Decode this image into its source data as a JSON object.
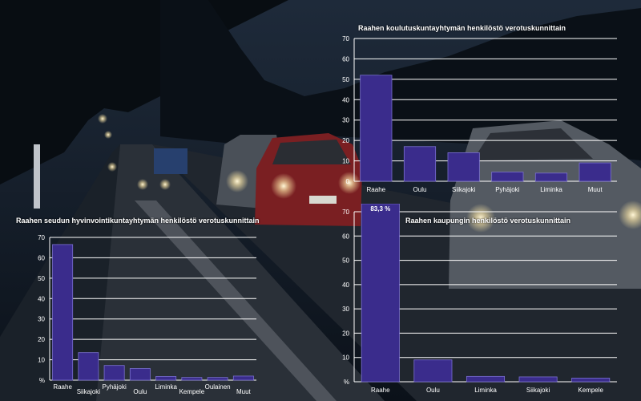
{
  "colors": {
    "bar": "#3a2c8c",
    "bar_stroke": "#7a70d0",
    "grid": "#ffffff",
    "text": "#ffffff"
  },
  "chart_data": [
    {
      "type": "bar",
      "title": "Raahen koulutuskuntayhtymän henkilöstö verotuskunnittain",
      "categories": [
        "Raahe",
        "Oulu",
        "Siikajoki",
        "Pyhäjoki",
        "Liminka",
        "Muut"
      ],
      "values": [
        52,
        17,
        14,
        4.5,
        4,
        9
      ],
      "yticks": [
        "0",
        "10",
        "20",
        "30",
        "40",
        "50",
        "60",
        "70"
      ],
      "ylim": [
        0,
        70
      ],
      "grid": true
    },
    {
      "type": "bar",
      "title": "Raahen seudun hyvinvointikuntayhtymän henkilöstö verotuskunnittain",
      "categories": [
        "Raahe",
        "Siikajoki",
        "Pyhäjoki",
        "Oulu",
        "Liminka",
        "Kempele",
        "Oulainen",
        "Muut"
      ],
      "values": [
        66.5,
        13.5,
        7.2,
        5.7,
        1.8,
        1.3,
        1.3,
        2
      ],
      "yticks": [
        "%",
        "10",
        "20",
        "30",
        "40",
        "50",
        "60",
        "70"
      ],
      "ylim": [
        0,
        70
      ],
      "grid": true
    },
    {
      "type": "bar",
      "title": "Raahen kaupungin henkilöstö verotuskunnittain",
      "categories": [
        "Raahe",
        "Oulu",
        "Liminka",
        "Siikajoki",
        "Kempele"
      ],
      "values": [
        83.3,
        9,
        2.2,
        2,
        1.5
      ],
      "value_labels": [
        "83,3 %",
        "",
        "",
        "",
        ""
      ],
      "yticks": [
        "%",
        "10",
        "20",
        "30",
        "40",
        "50",
        "60",
        "70"
      ],
      "ylim": [
        0,
        70
      ],
      "grid": true
    }
  ]
}
